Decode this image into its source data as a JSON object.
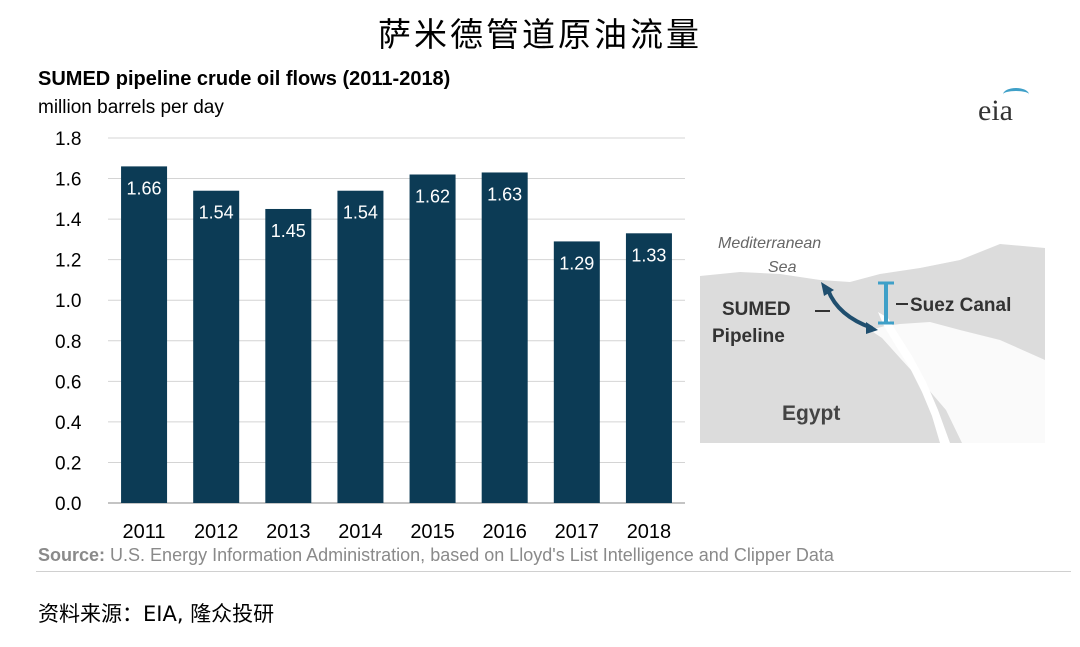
{
  "page_title_cn": "萨米德管道原油流量",
  "source_cn": "资料来源：EIA, 隆众投研",
  "logo_text": "eia",
  "source_label": "Source:",
  "source_text": "U.S. Energy Information Administration, based on Lloyd's List Intelligence and Clipper Data",
  "chart_data": {
    "type": "bar",
    "title": "SUMED pipeline crude oil flows (2011-2018)",
    "subtitle": "million barrels per day",
    "categories": [
      "2011",
      "2012",
      "2013",
      "2014",
      "2015",
      "2016",
      "2017",
      "2018"
    ],
    "values": [
      1.66,
      1.54,
      1.45,
      1.54,
      1.62,
      1.63,
      1.29,
      1.33
    ],
    "value_labels": [
      "1.66",
      "1.54",
      "1.45",
      "1.54",
      "1.62",
      "1.63",
      "1.29",
      "1.33"
    ],
    "ylim": [
      0,
      1.8
    ],
    "yticks": [
      "0.0",
      "0.2",
      "0.4",
      "0.6",
      "0.8",
      "1.0",
      "1.2",
      "1.4",
      "1.6",
      "1.8"
    ],
    "grid": true,
    "bar_color": "#0c3b55",
    "label_color": "#ffffff"
  },
  "map": {
    "sea_label_1": "Mediterranean",
    "sea_label_2": "Sea",
    "pipeline_label_1": "SUMED",
    "pipeline_label_2": "Pipeline",
    "canal_label": "Suez Canal",
    "country_label": "Egypt",
    "arrow_color": "#1f4e6e",
    "canal_color": "#3fa0c8"
  }
}
